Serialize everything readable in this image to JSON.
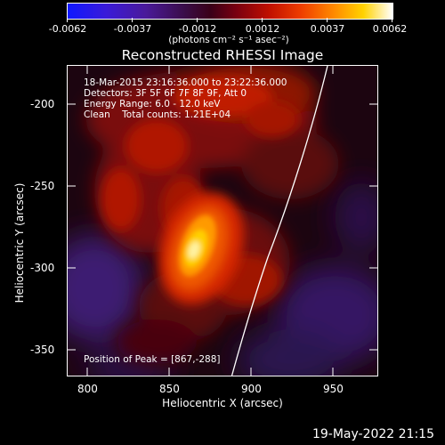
{
  "colorbar": {
    "tick_labels": [
      "-0.0062",
      "-0.0037",
      "-0.0012",
      "0.0012",
      "0.0037",
      "0.0062"
    ],
    "units": "(photons cm⁻² s⁻¹ asec⁻²)",
    "min": -0.0062,
    "max": 0.0062
  },
  "title": "Reconstructed RHESSI Image",
  "annotation": {
    "line1": "18-Mar-2015 23:16:36.000 to 23:22:36.000",
    "line2": "Detectors: 3F 5F 6F 7F 8F 9F, Att 0",
    "line3": "Energy Range: 6.0 - 12.0 keV",
    "line4": "Clean    Total counts: 1.21E+04",
    "peak": "Position of Peak = [867,-288]"
  },
  "axes": {
    "xlabel": "Heliocentric X (arcsec)",
    "ylabel": "Heliocentric Y (arcsec)",
    "x_ticks": [
      "800",
      "850",
      "900",
      "950"
    ],
    "y_ticks": [
      "-200",
      "-250",
      "-300",
      "-350"
    ],
    "x_range": [
      790,
      980
    ],
    "y_range": [
      -372,
      -182
    ]
  },
  "image": {
    "peak_x": 867,
    "peak_y": -288,
    "limb_color": "#ffffff"
  },
  "timestamp": "19-May-2022 21:15"
}
